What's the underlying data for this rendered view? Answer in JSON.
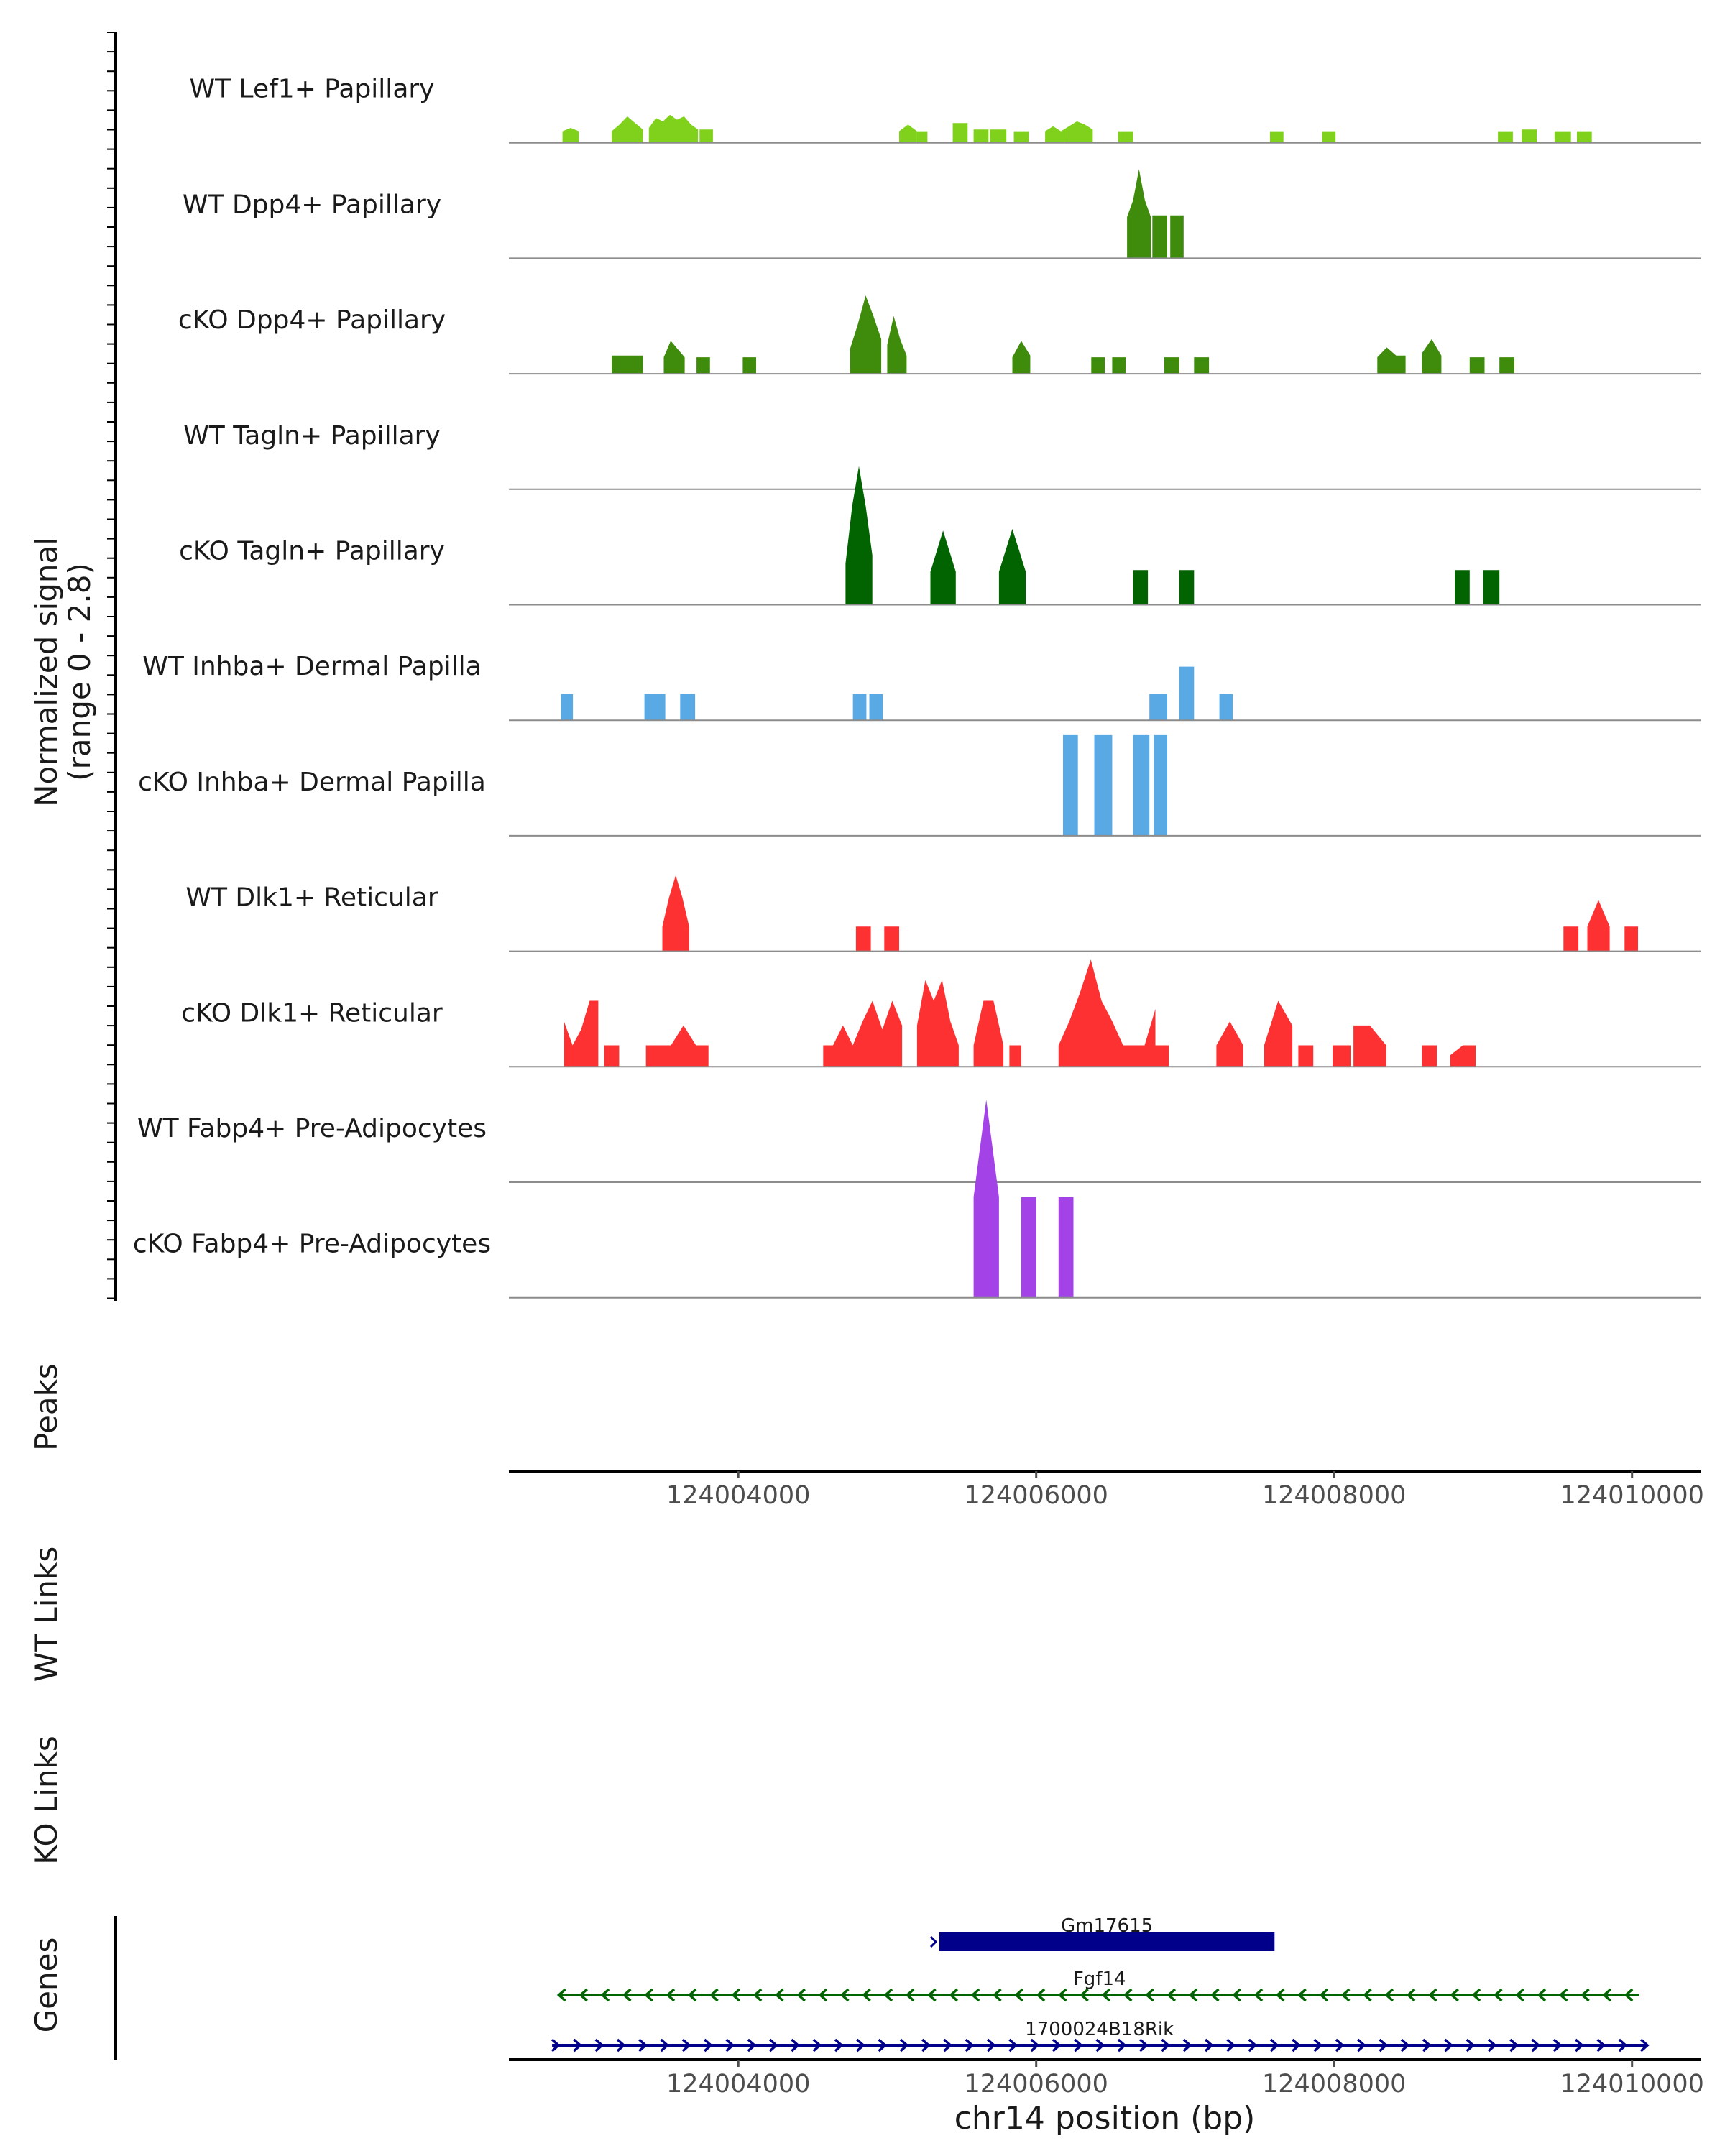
{
  "chart_data": {
    "type": "area",
    "chromosome": "chr14",
    "region": [
      124002460,
      124010460
    ],
    "coverage_ylabel": [
      "Normalized signal",
      "(range 0 - 2.8)"
    ],
    "ylim": [
      0,
      2.8
    ],
    "xlabel": "chr14 position (bp)",
    "xticks": [
      124004000,
      124006000,
      124008000,
      124010000
    ],
    "xtick_labels": [
      "124004000",
      "124006000",
      "124008000",
      "124010000"
    ],
    "track_labels": {
      "peaks": "Peaks",
      "wt_links": "WT Links",
      "ko_links": "KO Links",
      "genes": "Genes"
    },
    "tracks": [
      {
        "name": "WT Lef1+ Papillary",
        "color": "#7fd11b",
        "segments": [
          {
            "start": 124002820,
            "end": 124002930,
            "heights": [
              0.14,
              0.18,
              0.14
            ]
          },
          {
            "start": 124003150,
            "end": 124003360,
            "heights": [
              0.14,
              0.22,
              0.32,
              0.24,
              0.16
            ]
          },
          {
            "start": 124003400,
            "end": 124003730,
            "heights": [
              0.18,
              0.3,
              0.26,
              0.34,
              0.28,
              0.32,
              0.22,
              0.16
            ]
          },
          {
            "start": 124003740,
            "end": 124003830,
            "heights": [
              0.16,
              0.16
            ]
          },
          {
            "start": 124005080,
            "end": 124005200,
            "heights": [
              0.14,
              0.22,
              0.14
            ]
          },
          {
            "start": 124005200,
            "end": 124005270,
            "heights": [
              0.14,
              0.14
            ]
          },
          {
            "start": 124005440,
            "end": 124005540,
            "heights": [
              0.24,
              0.24
            ]
          },
          {
            "start": 124005580,
            "end": 124005680,
            "heights": [
              0.16,
              0.16
            ]
          },
          {
            "start": 124005690,
            "end": 124005800,
            "heights": [
              0.16,
              0.16
            ]
          },
          {
            "start": 124005850,
            "end": 124005950,
            "heights": [
              0.14,
              0.14
            ]
          },
          {
            "start": 124006060,
            "end": 124006220,
            "heights": [
              0.14,
              0.2,
              0.14,
              0.2
            ]
          },
          {
            "start": 124006220,
            "end": 124006380,
            "heights": [
              0.2,
              0.26,
              0.22,
              0.16
            ]
          },
          {
            "start": 124006550,
            "end": 124006650,
            "heights": [
              0.14,
              0.14
            ]
          },
          {
            "start": 124007570,
            "end": 124007660,
            "heights": [
              0.14,
              0.14
            ]
          },
          {
            "start": 124007920,
            "end": 124008010,
            "heights": [
              0.14,
              0.14
            ]
          },
          {
            "start": 124009100,
            "end": 124009200,
            "heights": [
              0.14,
              0.14
            ]
          },
          {
            "start": 124009260,
            "end": 124009360,
            "heights": [
              0.16,
              0.16
            ]
          },
          {
            "start": 124009480,
            "end": 124009590,
            "heights": [
              0.14,
              0.14
            ]
          },
          {
            "start": 124009630,
            "end": 124009730,
            "heights": [
              0.14,
              0.14
            ]
          }
        ]
      },
      {
        "name": "WT Dpp4+ Papillary",
        "color": "#3f8b0c",
        "segments": [
          {
            "start": 124006610,
            "end": 124006770,
            "heights": [
              0.5,
              0.7,
              1.08,
              0.7,
              0.5
            ]
          },
          {
            "start": 124006780,
            "end": 124006880,
            "heights": [
              0.52,
              0.52
            ]
          },
          {
            "start": 124006900,
            "end": 124006990,
            "heights": [
              0.52,
              0.52
            ]
          }
        ]
      },
      {
        "name": "cKO Dpp4+ Papillary",
        "color": "#3f8b0c",
        "segments": [
          {
            "start": 124003150,
            "end": 124003360,
            "heights": [
              0.22,
              0.22,
              0.22,
              0.22
            ]
          },
          {
            "start": 124003500,
            "end": 124003640,
            "heights": [
              0.2,
              0.4,
              0.3,
              0.2
            ]
          },
          {
            "start": 124003720,
            "end": 124003810,
            "heights": [
              0.2,
              0.2
            ]
          },
          {
            "start": 124004030,
            "end": 124004120,
            "heights": [
              0.2,
              0.2
            ]
          },
          {
            "start": 124004750,
            "end": 124004960,
            "heights": [
              0.3,
              0.6,
              0.95,
              0.7,
              0.42
            ]
          },
          {
            "start": 124005000,
            "end": 124005130,
            "heights": [
              0.35,
              0.7,
              0.42,
              0.22
            ]
          },
          {
            "start": 124005840,
            "end": 124005960,
            "heights": [
              0.2,
              0.4,
              0.22
            ]
          },
          {
            "start": 124006370,
            "end": 124006460,
            "heights": [
              0.2,
              0.2
            ]
          },
          {
            "start": 124006510,
            "end": 124006600,
            "heights": [
              0.2,
              0.2
            ]
          },
          {
            "start": 124006860,
            "end": 124006960,
            "heights": [
              0.2,
              0.2
            ]
          },
          {
            "start": 124007060,
            "end": 124007160,
            "heights": [
              0.2,
              0.2
            ]
          },
          {
            "start": 124008290,
            "end": 124008480,
            "heights": [
              0.2,
              0.32,
              0.22,
              0.22
            ]
          },
          {
            "start": 124008590,
            "end": 124008720,
            "heights": [
              0.25,
              0.42,
              0.22
            ]
          },
          {
            "start": 124008910,
            "end": 124009010,
            "heights": [
              0.2,
              0.2
            ]
          },
          {
            "start": 124009110,
            "end": 124009210,
            "heights": [
              0.2,
              0.2
            ]
          }
        ]
      },
      {
        "name": "WT Tagln+ Papillary",
        "color": "#016400",
        "segments": []
      },
      {
        "name": "cKO Tagln+ Papillary",
        "color": "#016400",
        "segments": [
          {
            "start": 124004720,
            "end": 124004900,
            "heights": [
              0.5,
              1.2,
              1.68,
              1.2,
              0.6
            ]
          },
          {
            "start": 124005290,
            "end": 124005460,
            "heights": [
              0.4,
              0.9,
              0.4
            ]
          },
          {
            "start": 124005750,
            "end": 124005930,
            "heights": [
              0.4,
              0.92,
              0.4
            ]
          },
          {
            "start": 124006650,
            "end": 124006750,
            "heights": [
              0.42,
              0.42
            ]
          },
          {
            "start": 124006960,
            "end": 124007060,
            "heights": [
              0.42,
              0.42
            ]
          },
          {
            "start": 124008810,
            "end": 124008910,
            "heights": [
              0.42,
              0.42
            ]
          },
          {
            "start": 124009000,
            "end": 124009110,
            "heights": [
              0.42,
              0.42
            ]
          }
        ]
      },
      {
        "name": "WT Inhba+ Dermal Papilla",
        "color": "#59a9e5",
        "segments": [
          {
            "start": 124002810,
            "end": 124002890,
            "heights": [
              0.32,
              0.32
            ]
          },
          {
            "start": 124003370,
            "end": 124003510,
            "heights": [
              0.32,
              0.32
            ]
          },
          {
            "start": 124003610,
            "end": 124003710,
            "heights": [
              0.32,
              0.32
            ]
          },
          {
            "start": 124004770,
            "end": 124004860,
            "heights": [
              0.32,
              0.32
            ]
          },
          {
            "start": 124004880,
            "end": 124004970,
            "heights": [
              0.32,
              0.32
            ]
          },
          {
            "start": 124006760,
            "end": 124006880,
            "heights": [
              0.32,
              0.32
            ]
          },
          {
            "start": 124006960,
            "end": 124007060,
            "heights": [
              0.65,
              0.65
            ]
          },
          {
            "start": 124007230,
            "end": 124007320,
            "heights": [
              0.32,
              0.32
            ]
          }
        ]
      },
      {
        "name": "cKO Inhba+ Dermal Papilla",
        "color": "#59a9e5",
        "segments": [
          {
            "start": 124006180,
            "end": 124006280,
            "heights": [
              1.22,
              1.22
            ]
          },
          {
            "start": 124006390,
            "end": 124006510,
            "heights": [
              1.22,
              1.22
            ]
          },
          {
            "start": 124006650,
            "end": 124006760,
            "heights": [
              1.22,
              1.22
            ]
          },
          {
            "start": 124006790,
            "end": 124006880,
            "heights": [
              1.22,
              1.22
            ]
          }
        ]
      },
      {
        "name": "WT Dlk1+ Reticular",
        "color": "#fd3132",
        "segments": [
          {
            "start": 124003490,
            "end": 124003670,
            "heights": [
              0.3,
              0.65,
              0.92,
              0.65,
              0.3
            ]
          },
          {
            "start": 124004790,
            "end": 124004890,
            "heights": [
              0.3,
              0.3
            ]
          },
          {
            "start": 124004980,
            "end": 124005080,
            "heights": [
              0.3,
              0.3
            ]
          },
          {
            "start": 124009540,
            "end": 124009640,
            "heights": [
              0.3,
              0.3
            ]
          },
          {
            "start": 124009700,
            "end": 124009850,
            "heights": [
              0.3,
              0.62,
              0.3
            ]
          },
          {
            "start": 124009950,
            "end": 124010040,
            "heights": [
              0.3,
              0.3
            ]
          }
        ]
      },
      {
        "name": "cKO Dlk1+ Reticular",
        "color": "#fd3132",
        "segments": [
          {
            "start": 124002830,
            "end": 124003060,
            "heights": [
              0.55,
              0.26,
              0.45,
              0.8,
              0.8
            ]
          },
          {
            "start": 124003100,
            "end": 124003200,
            "heights": [
              0.26,
              0.26
            ]
          },
          {
            "start": 124003380,
            "end": 124003800,
            "heights": [
              0.26,
              0.26,
              0.26,
              0.5,
              0.26,
              0.26
            ]
          },
          {
            "start": 124004570,
            "end": 124005100,
            "heights": [
              0.26,
              0.26,
              0.5,
              0.26,
              0.55,
              0.8,
              0.45,
              0.8,
              0.5
            ]
          },
          {
            "start": 124005200,
            "end": 124005480,
            "heights": [
              0.5,
              1.05,
              0.8,
              1.05,
              0.55,
              0.26
            ]
          },
          {
            "start": 124005580,
            "end": 124005780,
            "heights": [
              0.26,
              0.8,
              0.8,
              0.26
            ]
          },
          {
            "start": 124005820,
            "end": 124005900,
            "heights": [
              0.26,
              0.26
            ]
          },
          {
            "start": 124006150,
            "end": 124006800,
            "heights": [
              0.26,
              0.55,
              0.9,
              1.3,
              0.8,
              0.55,
              0.26,
              0.26,
              0.26,
              0.7
            ]
          },
          {
            "start": 124006800,
            "end": 124006890,
            "heights": [
              0.26,
              0.26
            ]
          },
          {
            "start": 124007210,
            "end": 124007390,
            "heights": [
              0.26,
              0.55,
              0.26
            ]
          },
          {
            "start": 124007530,
            "end": 124007720,
            "heights": [
              0.26,
              0.8,
              0.5
            ]
          },
          {
            "start": 124007760,
            "end": 124007860,
            "heights": [
              0.26,
              0.26
            ]
          },
          {
            "start": 124007990,
            "end": 124008110,
            "heights": [
              0.26,
              0.26
            ]
          },
          {
            "start": 124008130,
            "end": 124008350,
            "heights": [
              0.5,
              0.5,
              0.26
            ]
          },
          {
            "start": 124008590,
            "end": 124008690,
            "heights": [
              0.26,
              0.26
            ]
          },
          {
            "start": 124008780,
            "end": 124008950,
            "heights": [
              0.14,
              0.26,
              0.26
            ]
          }
        ]
      },
      {
        "name": "WT Fabp4+ Pre-Adipocytes",
        "color": "#a342e6",
        "segments": []
      },
      {
        "name": "cKO Fabp4+ Pre-Adipocytes",
        "color": "#a342e6",
        "segments": [
          {
            "start": 124005580,
            "end": 124005750,
            "heights": [
              1.22,
              2.4,
              1.22
            ]
          },
          {
            "start": 124005900,
            "end": 124006000,
            "heights": [
              1.22,
              1.22
            ]
          },
          {
            "start": 124006150,
            "end": 124006250,
            "heights": [
              1.22,
              1.22
            ]
          }
        ]
      }
    ],
    "genes": [
      {
        "name": "Gm17615",
        "label": "Gm17615",
        "start": 124005350,
        "end": 124007600,
        "strand": "+",
        "style": "exon",
        "color": "#00008b"
      },
      {
        "name": "Fgf14",
        "label": "Fgf14",
        "start": 124002800,
        "end": 124010050,
        "strand": "-",
        "style": "intron",
        "color": "#006400"
      },
      {
        "name": "1700024B18Rik",
        "label": "1700024B18Rik",
        "start": 124002750,
        "end": 124010100,
        "strand": "+",
        "style": "intron",
        "color": "#00008b"
      }
    ]
  }
}
